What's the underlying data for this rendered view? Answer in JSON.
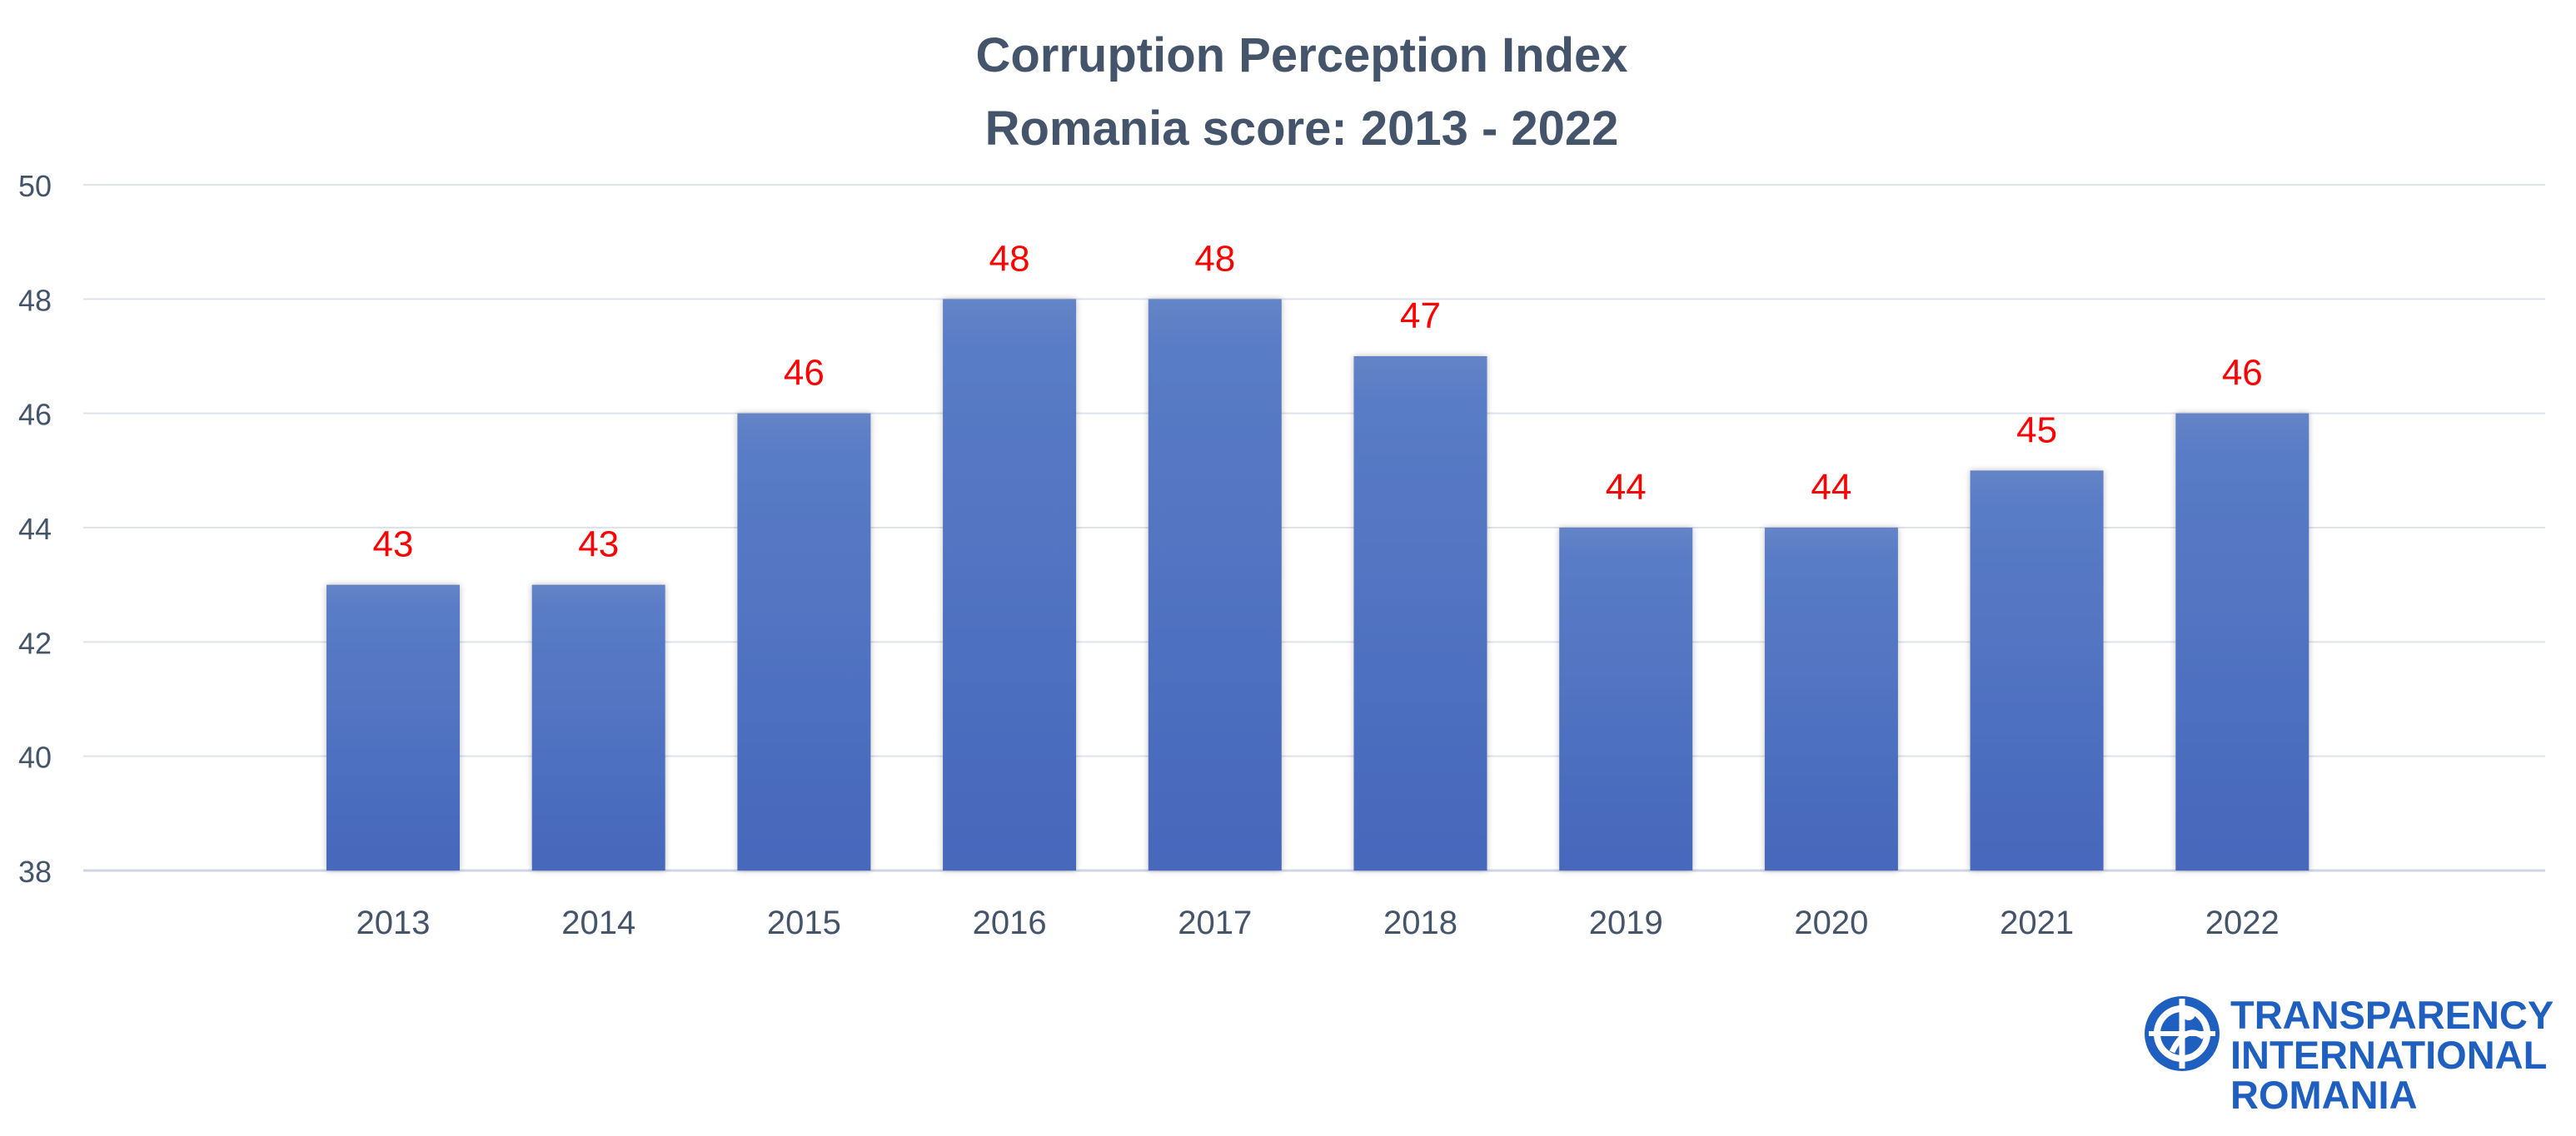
{
  "chart_data": {
    "type": "bar",
    "title": [
      "Corruption Perception Index",
      "Romania score: 2013 - 2022"
    ],
    "categories": [
      "2013",
      "2014",
      "2015",
      "2016",
      "2017",
      "2018",
      "2019",
      "2020",
      "2021",
      "2022"
    ],
    "values": [
      43,
      43,
      46,
      48,
      48,
      47,
      44,
      44,
      45,
      46
    ],
    "ylim": [
      38,
      50
    ],
    "yticks": [
      38,
      40,
      42,
      44,
      46,
      48,
      50
    ],
    "grid": true,
    "legend": "none",
    "bar_color": "#4a6fc1",
    "label_color": "#ff0000"
  },
  "logo": {
    "lines": [
      "TRANSPARENCY",
      "INTERNATIONAL",
      "ROMANIA"
    ],
    "color": "#1f5fc0"
  }
}
